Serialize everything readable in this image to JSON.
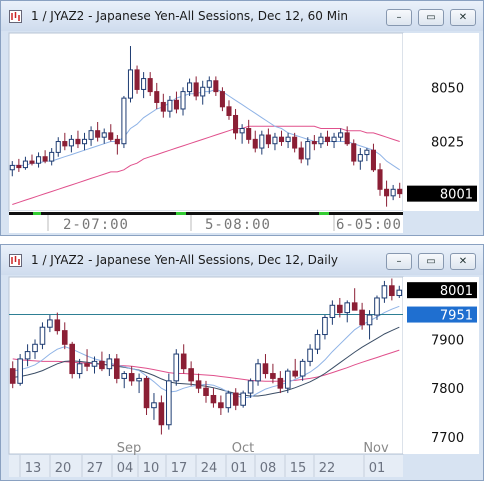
{
  "charts": [
    {
      "title": "1 / JYAZ2 - Japanese Yen-All Sessions, Dec 12, 60 Min",
      "window_buttons": {
        "minimize": "–",
        "restore": "▭",
        "close": "✕"
      },
      "chart_data": {
        "type": "candlestick",
        "y_ticks": [
          8050,
          8025
        ],
        "ylim": [
          7993,
          8075
        ],
        "last_price_label": "8001",
        "x_labels": [
          "2-07:00",
          "5-08:00",
          "6-05:00"
        ],
        "colors": {
          "up": "#1e3c72",
          "down": "#8b1f35",
          "ma_fast": "#8fb3e6",
          "ma_slow": "#e0508c",
          "price_box": "#000000",
          "session_mark": "#33cc33"
        },
        "ohlc": [
          [
            8012,
            8016,
            8009,
            8014
          ],
          [
            8014,
            8017,
            8011,
            8013
          ],
          [
            8013,
            8018,
            8012,
            8016
          ],
          [
            8016,
            8019,
            8014,
            8015
          ],
          [
            8015,
            8020,
            8013,
            8018
          ],
          [
            8018,
            8021,
            8015,
            8016
          ],
          [
            8016,
            8022,
            8014,
            8020
          ],
          [
            8020,
            8027,
            8018,
            8025
          ],
          [
            8025,
            8029,
            8021,
            8023
          ],
          [
            8023,
            8028,
            8020,
            8026
          ],
          [
            8026,
            8030,
            8022,
            8024
          ],
          [
            8024,
            8029,
            8021,
            8026
          ],
          [
            8026,
            8032,
            8023,
            8030
          ],
          [
            8030,
            8034,
            8025,
            8027
          ],
          [
            8027,
            8031,
            8024,
            8029
          ],
          [
            8029,
            8033,
            8025,
            8026
          ],
          [
            8026,
            8028,
            8019,
            8024
          ],
          [
            8024,
            8046,
            8022,
            8045
          ],
          [
            8045,
            8069,
            8043,
            8058
          ],
          [
            8058,
            8060,
            8047,
            8049
          ],
          [
            8049,
            8057,
            8045,
            8054
          ],
          [
            8054,
            8057,
            8046,
            8048
          ],
          [
            8048,
            8052,
            8040,
            8043
          ],
          [
            8043,
            8047,
            8036,
            8039
          ],
          [
            8039,
            8046,
            8036,
            8044
          ],
          [
            8044,
            8048,
            8038,
            8040
          ],
          [
            8040,
            8050,
            8037,
            8048
          ],
          [
            8048,
            8054,
            8046,
            8052
          ],
          [
            8052,
            8055,
            8044,
            8046
          ],
          [
            8046,
            8053,
            8042,
            8050
          ],
          [
            8050,
            8055,
            8047,
            8053
          ],
          [
            8053,
            8055,
            8046,
            8048
          ],
          [
            8048,
            8050,
            8039,
            8041
          ],
          [
            8041,
            8044,
            8035,
            8037
          ],
          [
            8037,
            8040,
            8026,
            8029
          ],
          [
            8029,
            8033,
            8024,
            8031
          ],
          [
            8031,
            8035,
            8024,
            8026
          ],
          [
            8026,
            8030,
            8020,
            8022
          ],
          [
            8022,
            8030,
            8019,
            8028
          ],
          [
            8028,
            8031,
            8022,
            8024
          ],
          [
            8024,
            8029,
            8021,
            8027
          ],
          [
            8027,
            8030,
            8023,
            8025
          ],
          [
            8025,
            8029,
            8022,
            8027
          ],
          [
            8027,
            8029,
            8020,
            8022
          ],
          [
            8022,
            8025,
            8015,
            8017
          ],
          [
            8017,
            8027,
            8014,
            8025
          ],
          [
            8025,
            8028,
            8021,
            8024
          ],
          [
            8024,
            8029,
            8022,
            8027
          ],
          [
            8027,
            8030,
            8023,
            8025
          ],
          [
            8025,
            8029,
            8022,
            8027
          ],
          [
            8027,
            8031,
            8025,
            8029
          ],
          [
            8029,
            8032,
            8023,
            8024
          ],
          [
            8024,
            8026,
            8014,
            8016
          ],
          [
            8016,
            8022,
            8012,
            8019
          ],
          [
            8019,
            8022,
            8016,
            8021
          ],
          [
            8021,
            8024,
            8011,
            8012
          ],
          [
            8012,
            8015,
            8000,
            8003
          ],
          [
            8003,
            8007,
            7995,
            8000
          ],
          [
            8000,
            8005,
            7998,
            8003
          ],
          [
            8003,
            8006,
            7999,
            8001
          ]
        ],
        "ma_fast": [
          8014,
          8014,
          8014,
          8015,
          8015,
          8016,
          8016,
          8017,
          8018,
          8019,
          8020,
          8021,
          8022,
          8023,
          8024,
          8025,
          8025,
          8027,
          8031,
          8033,
          8036,
          8038,
          8040,
          8041,
          8043,
          8045,
          8046,
          8047,
          8047,
          8048,
          8048,
          8049,
          8048,
          8046,
          8044,
          8042,
          8040,
          8038,
          8036,
          8034,
          8032,
          8031,
          8029,
          8028,
          8027,
          8026,
          8025,
          8025,
          8025,
          8025,
          8025,
          8025,
          8024,
          8023,
          8022,
          8021,
          8019,
          8016,
          8014,
          8012
        ],
        "ma_slow": [
          7996,
          7997,
          7998,
          7999,
          8000,
          8001,
          8002,
          8003,
          8004,
          8005,
          8006,
          8007,
          8008,
          8009,
          8010,
          8011,
          8011,
          8012,
          8014,
          8015,
          8017,
          8018,
          8019,
          8020,
          8021,
          8022,
          8023,
          8024,
          8025,
          8026,
          8027,
          8028,
          8029,
          8030,
          8031,
          8031,
          8032,
          8032,
          8032,
          8032,
          8032,
          8032,
          8032,
          8032,
          8032,
          8032,
          8032,
          8031,
          8031,
          8031,
          8031,
          8030,
          8030,
          8030,
          8029,
          8029,
          8028,
          8027,
          8026,
          8025
        ]
      }
    },
    {
      "title": "1 / JYAZ2 - Japanese Yen-All Sessions, Dec 12, Daily",
      "window_buttons": {
        "minimize": "–",
        "restore": "▭",
        "close": "✕"
      },
      "chart_data": {
        "type": "candlestick",
        "y_ticks": [
          7900,
          7800,
          7700
        ],
        "ylim": [
          7665,
          8028
        ],
        "last_price_label": "8001",
        "hline_label": "7951",
        "hline_value": 7951,
        "month_labels": [
          "Sep",
          "Oct",
          "Nov"
        ],
        "x_labels": [
          "13",
          "20",
          "27",
          "04",
          "10",
          "17",
          "24",
          "01",
          "08",
          "15",
          "22",
          "01"
        ],
        "colors": {
          "up": "#1e3c72",
          "down": "#8b1f35",
          "ma_fast": "#8fb3e6",
          "ma_slow": "#e0508c",
          "ma_mid": "#3b4e66",
          "hline": "#2e7f94",
          "hline_box": "#1f6fd0",
          "price_box": "#000000"
        },
        "ohlc": [
          [
            7840,
            7855,
            7800,
            7810
          ],
          [
            7810,
            7870,
            7805,
            7860
          ],
          [
            7860,
            7890,
            7845,
            7875
          ],
          [
            7875,
            7900,
            7860,
            7890
          ],
          [
            7890,
            7935,
            7880,
            7925
          ],
          [
            7925,
            7950,
            7915,
            7940
          ],
          [
            7940,
            7955,
            7910,
            7918
          ],
          [
            7918,
            7935,
            7880,
            7890
          ],
          [
            7890,
            7895,
            7820,
            7830
          ],
          [
            7830,
            7860,
            7820,
            7850
          ],
          [
            7850,
            7880,
            7835,
            7845
          ],
          [
            7845,
            7865,
            7830,
            7855
          ],
          [
            7855,
            7875,
            7835,
            7840
          ],
          [
            7840,
            7870,
            7825,
            7860
          ],
          [
            7860,
            7870,
            7810,
            7820
          ],
          [
            7820,
            7835,
            7800,
            7830
          ],
          [
            7830,
            7845,
            7805,
            7815
          ],
          [
            7815,
            7830,
            7790,
            7820
          ],
          [
            7820,
            7825,
            7745,
            7760
          ],
          [
            7760,
            7790,
            7735,
            7770
          ],
          [
            7770,
            7785,
            7705,
            7725
          ],
          [
            7725,
            7830,
            7715,
            7815
          ],
          [
            7815,
            7880,
            7805,
            7870
          ],
          [
            7870,
            7890,
            7830,
            7840
          ],
          [
            7840,
            7855,
            7805,
            7815
          ],
          [
            7815,
            7830,
            7790,
            7800
          ],
          [
            7800,
            7815,
            7770,
            7785
          ],
          [
            7785,
            7800,
            7760,
            7770
          ],
          [
            7770,
            7785,
            7745,
            7760
          ],
          [
            7760,
            7795,
            7750,
            7790
          ],
          [
            7790,
            7800,
            7755,
            7765
          ],
          [
            7765,
            7795,
            7760,
            7790
          ],
          [
            7790,
            7820,
            7780,
            7815
          ],
          [
            7815,
            7860,
            7805,
            7850
          ],
          [
            7850,
            7870,
            7820,
            7830
          ],
          [
            7830,
            7850,
            7810,
            7820
          ],
          [
            7820,
            7835,
            7790,
            7800
          ],
          [
            7800,
            7840,
            7790,
            7835
          ],
          [
            7835,
            7860,
            7820,
            7825
          ],
          [
            7825,
            7860,
            7815,
            7855
          ],
          [
            7855,
            7890,
            7845,
            7880
          ],
          [
            7880,
            7920,
            7870,
            7910
          ],
          [
            7910,
            7950,
            7900,
            7945
          ],
          [
            7945,
            7980,
            7930,
            7970
          ],
          [
            7970,
            7985,
            7945,
            7955
          ],
          [
            7955,
            7980,
            7935,
            7975
          ],
          [
            7975,
            8005,
            7960,
            7960
          ],
          [
            7960,
            7975,
            7920,
            7930
          ],
          [
            7930,
            7960,
            7900,
            7950
          ],
          [
            7950,
            7990,
            7940,
            7985
          ],
          [
            7985,
            8020,
            7975,
            8010
          ],
          [
            8010,
            8025,
            7980,
            7990
          ],
          [
            7990,
            8010,
            7985,
            8001
          ]
        ],
        "ma_fast": [
          7835,
          7838,
          7842,
          7848,
          7858,
          7870,
          7880,
          7885,
          7880,
          7873,
          7866,
          7860,
          7856,
          7852,
          7848,
          7844,
          7840,
          7836,
          7825,
          7813,
          7800,
          7792,
          7794,
          7800,
          7804,
          7806,
          7808,
          7806,
          7800,
          7792,
          7785,
          7780,
          7782,
          7790,
          7798,
          7803,
          7807,
          7812,
          7818,
          7825,
          7833,
          7844,
          7858,
          7875,
          7890,
          7905,
          7920,
          7930,
          7938,
          7946,
          7955,
          7962,
          7968
        ],
        "ma_mid": [
          7822,
          7824,
          7827,
          7831,
          7836,
          7843,
          7850,
          7855,
          7856,
          7855,
          7853,
          7851,
          7849,
          7847,
          7845,
          7843,
          7840,
          7837,
          7832,
          7826,
          7819,
          7813,
          7810,
          7809,
          7808,
          7806,
          7804,
          7801,
          7797,
          7793,
          7789,
          7786,
          7784,
          7784,
          7786,
          7789,
          7792,
          7796,
          7801,
          7807,
          7813,
          7821,
          7830,
          7841,
          7852,
          7863,
          7874,
          7884,
          7893,
          7902,
          7911,
          7918,
          7925
        ],
        "ma_slow": [
          7860,
          7858,
          7857,
          7856,
          7855,
          7855,
          7855,
          7854,
          7853,
          7852,
          7851,
          7850,
          7849,
          7848,
          7847,
          7846,
          7845,
          7843,
          7841,
          7838,
          7835,
          7832,
          7830,
          7830,
          7829,
          7828,
          7827,
          7826,
          7824,
          7822,
          7820,
          7818,
          7816,
          7815,
          7814,
          7814,
          7814,
          7815,
          7816,
          7818,
          7820,
          7823,
          7827,
          7832,
          7837,
          7842,
          7848,
          7853,
          7858,
          7863,
          7868,
          7873,
          7878
        ]
      }
    }
  ]
}
